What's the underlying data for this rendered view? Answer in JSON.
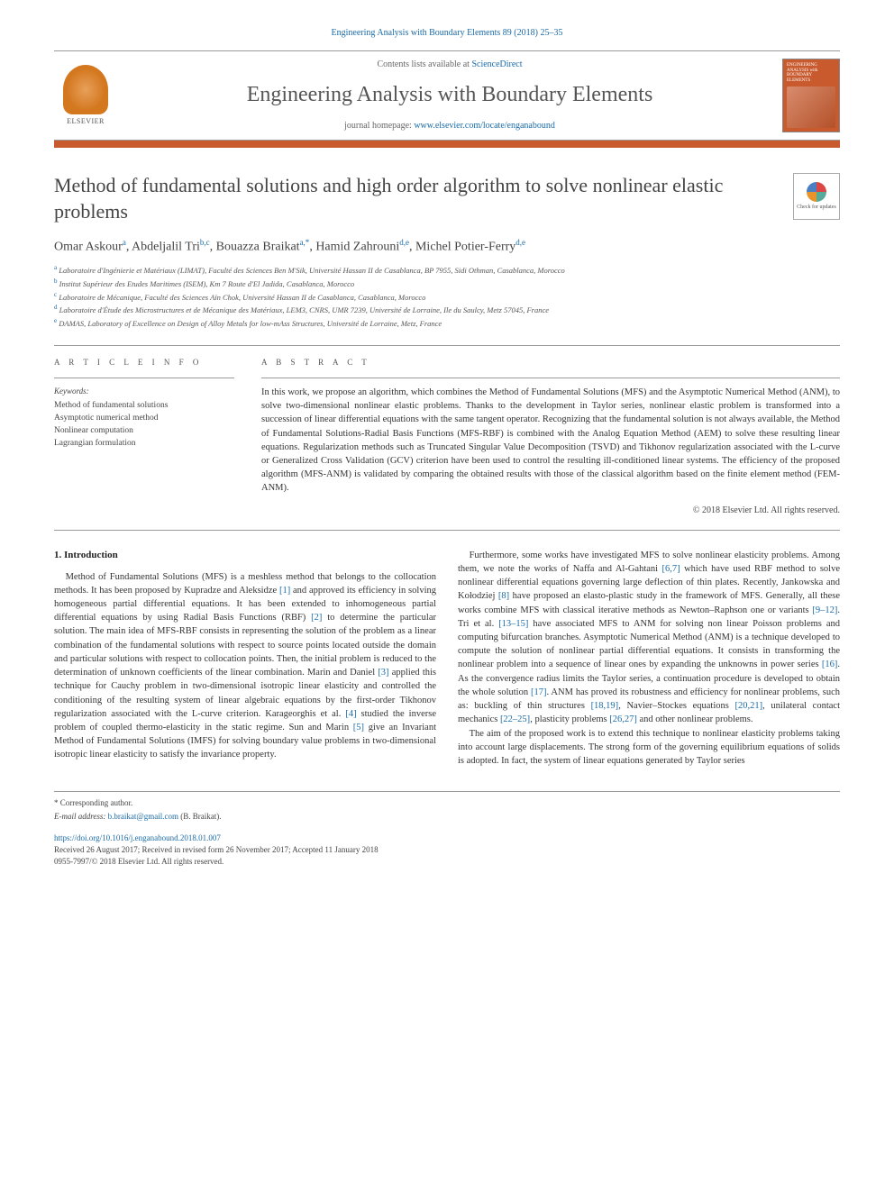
{
  "header": {
    "citation": "Engineering Analysis with Boundary Elements 89 (2018) 25–35",
    "contents_prefix": "Contents lists available at ",
    "contents_link": "ScienceDirect",
    "journal_title": "Engineering Analysis with Boundary Elements",
    "homepage_prefix": "journal homepage: ",
    "homepage_link": "www.elsevier.com/locate/enganabound",
    "elsevier_label": "ELSEVIER",
    "cover_title": "ENGINEERING ANALYSIS with BOUNDARY ELEMENTS"
  },
  "colors": {
    "accent_orange": "#c85a2e",
    "link_blue": "#1a6ba8",
    "text_gray": "#555555",
    "rule_gray": "#999999"
  },
  "article": {
    "title": "Method of fundamental solutions and high order algorithm to solve nonlinear elastic problems",
    "check_updates": "Check for updates",
    "authors_html": "Omar Askour<sup>a</sup>, Abdeljalil Tri<sup>b,c</sup>, Bouazza Braikat<sup>a,*</sup>, Hamid Zahrouni<sup>d,e</sup>, Michel Potier-Ferry<sup>d,e</sup>",
    "affiliations": [
      {
        "sup": "a",
        "text": "Laboratoire d'Ingénierie et Matériaux (LIMAT), Faculté des Sciences Ben M'Sik, Université Hassan II de Casablanca, BP 7955, Sidi Othman, Casablanca, Morocco"
      },
      {
        "sup": "b",
        "text": "Institut Supérieur des Etudes Maritimes (ISEM), Km 7 Route d'El Jadida, Casablanca, Morocco"
      },
      {
        "sup": "c",
        "text": "Laboratoire de Mécanique, Faculté des Sciences Aïn Chok, Université Hassan II de Casablanca, Casablanca, Morocco"
      },
      {
        "sup": "d",
        "text": "Laboratoire d'Étude des Microstructures et de Mécanique des Matériaux, LEM3, CNRS, UMR 7239, Université de Lorraine, Ile du Saulcy, Metz 57045, France"
      },
      {
        "sup": "e",
        "text": "DAMAS, Laboratory of Excellence on Design of Alloy Metals for low-mAss Structures, Université de Lorraine, Metz, France"
      }
    ]
  },
  "info": {
    "heading": "A R T I C L E   I N F O",
    "keywords_label": "Keywords:",
    "keywords": "Method of fundamental solutions\nAsymptotic numerical method\nNonlinear computation\nLagrangian formulation"
  },
  "abstract": {
    "heading": "A B S T R A C T",
    "text": "In this work, we propose an algorithm, which combines the Method of Fundamental Solutions (MFS) and the Asymptotic Numerical Method (ANM), to solve two-dimensional nonlinear elastic problems. Thanks to the development in Taylor series, nonlinear elastic problem is transformed into a succession of linear differential equations with the same tangent operator. Recognizing that the fundamental solution is not always available, the Method of Fundamental Solutions-Radial Basis Functions (MFS-RBF) is combined with the Analog Equation Method (AEM) to solve these resulting linear equations. Regularization methods such as Truncated Singular Value Decomposition (TSVD) and Tikhonov regularization associated with the L-curve or Generalized Cross Validation (GCV) criterion have been used to control the resulting ill-conditioned linear systems. The efficiency of the proposed algorithm (MFS-ANM) is validated by comparing the obtained results with those of the classical algorithm based on the finite element method (FEM-ANM)."
  },
  "copyright": "© 2018 Elsevier Ltd. All rights reserved.",
  "body": {
    "section_heading": "1. Introduction",
    "p1": "Method of Fundamental Solutions (MFS) is a meshless method that belongs to the collocation methods. It has been proposed by Kupradze and Aleksidze [1] and approved its efficiency in solving homogeneous partial differential equations. It has been extended to inhomogeneous partial differential equations by using Radial Basis Functions (RBF) [2] to determine the particular solution. The main idea of MFS-RBF consists in representing the solution of the problem as a linear combination of the fundamental solutions with respect to source points located outside the domain and particular solutions with respect to collocation points. Then, the initial problem is reduced to the determination of unknown coefficients of the linear combination. Marin and Daniel [3] applied this technique for Cauchy problem in two-dimensional isotropic linear elasticity and controlled the conditioning of the resulting system of linear algebraic equations by the first-order Tikhonov regularization associated with the L-curve criterion. Karageorghis et al. [4] studied the inverse problem of coupled thermo-elasticity in the static regime. Sun and Marin [5] give an Invariant Method of Fundamental Solutions (IMFS) for solving boundary value problems in two-dimensional isotropic linear elasticity to satisfy the invariance property.",
    "p2": "Furthermore, some works have investigated MFS to solve nonlinear elasticity problems. Among them, we note the works of Naffa and Al-Gahtani [6,7] which have used RBF method to solve nonlinear differential equations governing large deflection of thin plates. Recently, Jankowska and Kołodziej [8] have proposed an elasto-plastic study in the framework of MFS. Generally, all these works combine MFS with classical iterative methods as Newton–Raphson one or variants [9–12]. Tri et al. [13–15] have associated MFS to ANM for solving non linear Poisson problems and computing bifurcation branches. Asymptotic Numerical Method (ANM) is a technique developed to compute the solution of nonlinear partial differential equations. It consists in transforming the nonlinear problem into a sequence of linear ones by expanding the unknowns in power series [16]. As the convergence radius limits the Taylor series, a continuation procedure is developed to obtain the whole solution [17]. ANM has proved its robustness and efficiency for nonlinear problems, such as: buckling of thin structures [18,19], Navier–Stockes equations [20,21], unilateral contact mechanics [22–25], plasticity problems [26,27] and other nonlinear problems.",
    "p3": "The aim of the proposed work is to extend this technique to nonlinear elasticity problems taking into account large displacements. The strong form of the governing equilibrium equations of solids is adopted. In fact, the system of linear equations generated by Taylor series"
  },
  "footer": {
    "corr_label": "* Corresponding author.",
    "email_label": "E-mail address: ",
    "email": "b.braikat@gmail.com",
    "email_name": " (B. Braikat).",
    "doi": "https://doi.org/10.1016/j.enganabound.2018.01.007",
    "received": "Received 26 August 2017; Received in revised form 26 November 2017; Accepted 11 January 2018",
    "issn_copyright": "0955-7997/© 2018 Elsevier Ltd. All rights reserved."
  }
}
